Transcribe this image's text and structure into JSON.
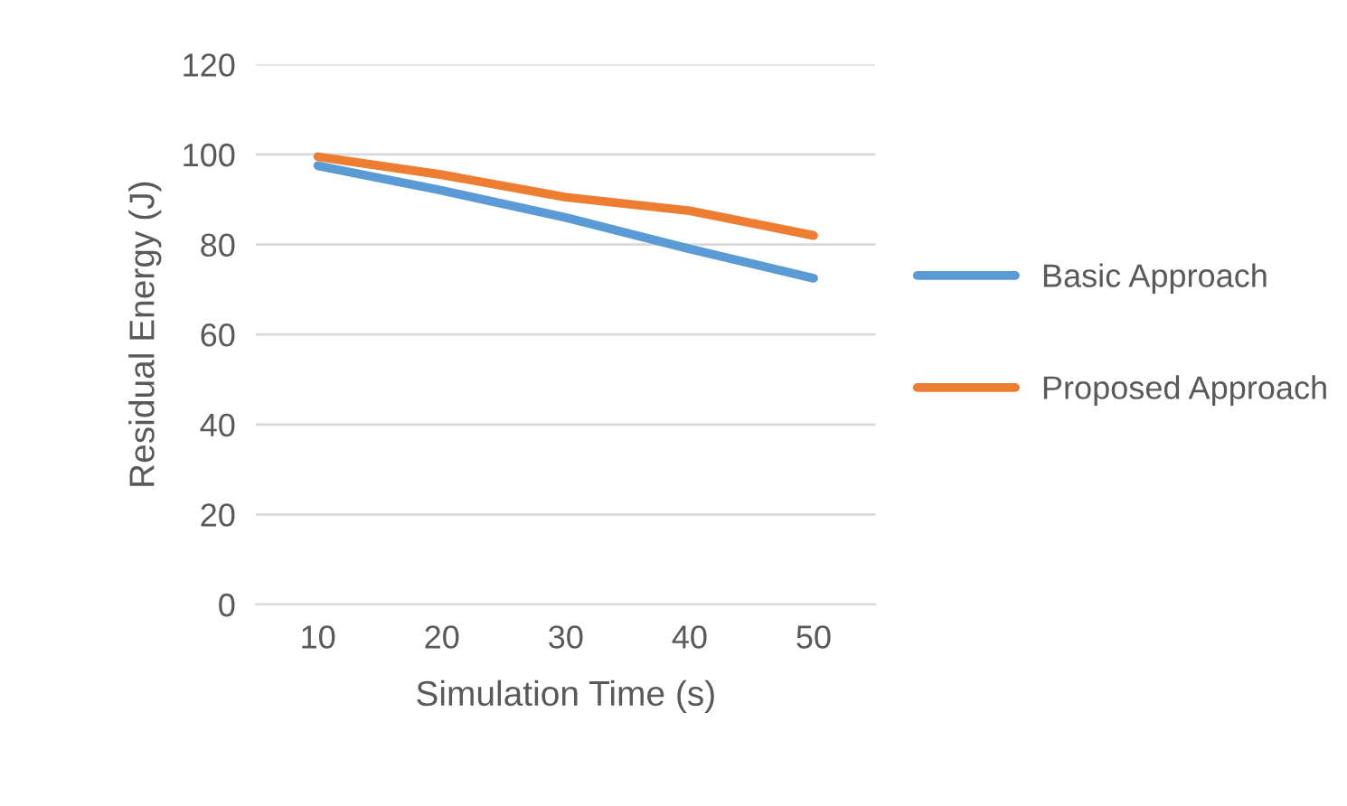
{
  "chart_data": {
    "type": "line",
    "xlabel": "Simulation Time (s)",
    "ylabel": "Residual Energy (J)",
    "categories": [
      "10",
      "20",
      "30",
      "40",
      "50"
    ],
    "series": [
      {
        "name": "Basic Approach",
        "color": "#5b9bd5",
        "values": [
          97.5,
          92,
          86,
          79,
          72.5
        ]
      },
      {
        "name": "Proposed Approach",
        "color": "#ed7d31",
        "values": [
          99.5,
          95.5,
          90.5,
          87.5,
          82
        ]
      }
    ],
    "ylim": [
      0,
      120
    ],
    "yticks": [
      0,
      20,
      40,
      60,
      80,
      100,
      120
    ],
    "grid": "y",
    "legend": "right",
    "marker": "none",
    "line_style": "solid"
  }
}
